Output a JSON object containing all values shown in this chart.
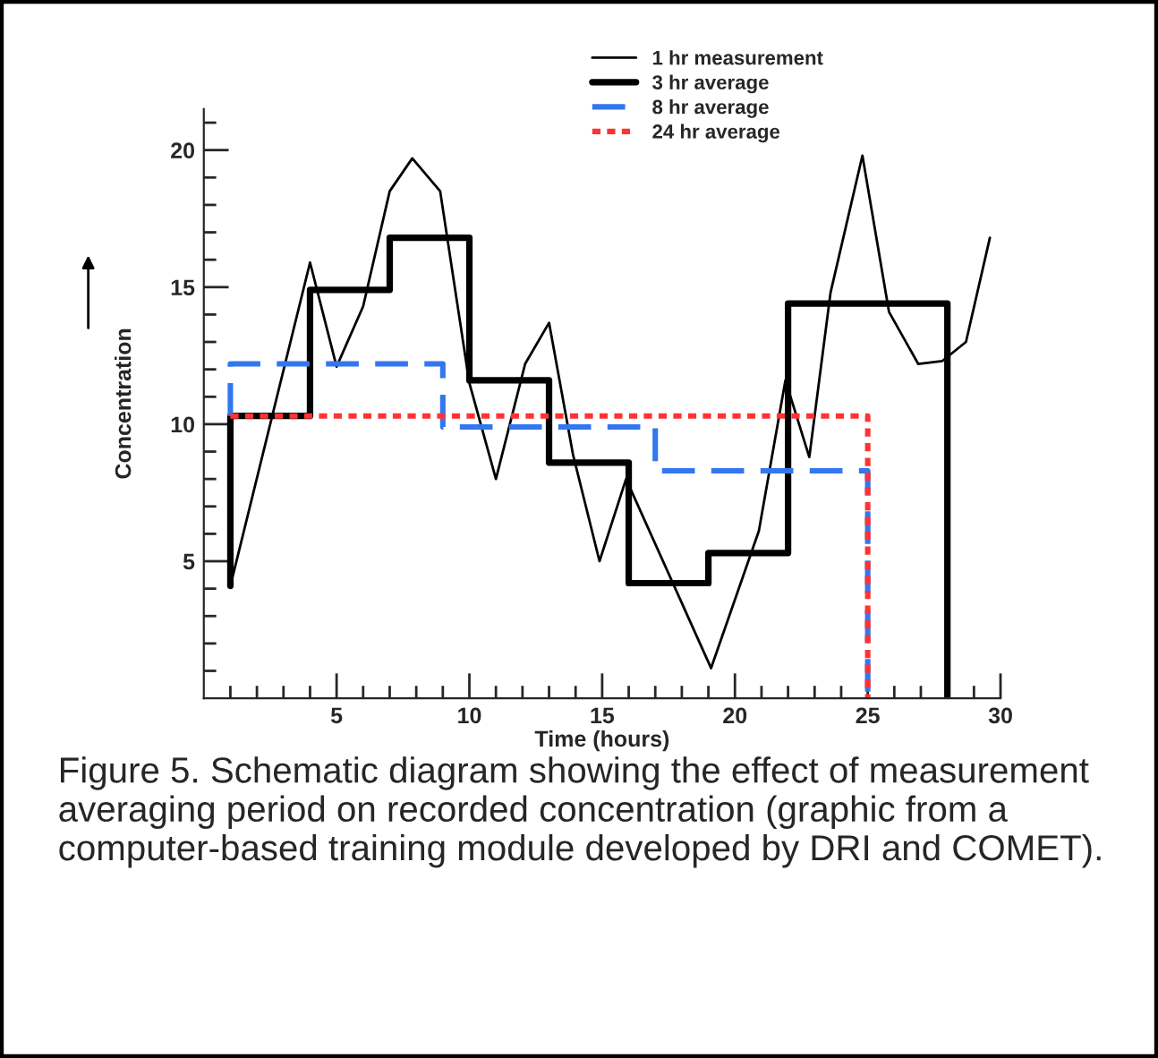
{
  "chart_data": {
    "type": "line",
    "xlabel": "Time (hours)",
    "ylabel": "Concentration",
    "xlim": [
      0,
      30
    ],
    "ylim": [
      0,
      21.5
    ],
    "xticks": [
      {
        "value": 1,
        "label": null
      },
      {
        "value": 2,
        "label": null
      },
      {
        "value": 3,
        "label": null
      },
      {
        "value": 4,
        "label": null
      },
      5,
      {
        "value": 6,
        "label": null
      },
      {
        "value": 7,
        "label": null
      },
      {
        "value": 8,
        "label": null
      },
      {
        "value": 9,
        "label": null
      },
      10,
      {
        "value": 11,
        "label": null
      },
      {
        "value": 12,
        "label": null
      },
      {
        "value": 13,
        "label": null
      },
      {
        "value": 14,
        "label": null
      },
      15,
      {
        "value": 16,
        "label": null
      },
      {
        "value": 17,
        "label": null
      },
      {
        "value": 18,
        "label": null
      },
      {
        "value": 19,
        "label": null
      },
      20,
      {
        "value": 21,
        "label": null
      },
      {
        "value": 22,
        "label": null
      },
      {
        "value": 23,
        "label": null
      },
      {
        "value": 24,
        "label": null
      },
      25,
      {
        "value": 26,
        "label": null
      },
      {
        "value": 27,
        "label": null
      },
      {
        "value": 28,
        "label": null
      },
      {
        "value": 29,
        "label": null
      },
      30
    ],
    "yticks": [
      {
        "value": 1,
        "label": null
      },
      {
        "value": 2,
        "label": null
      },
      {
        "value": 3,
        "label": null
      },
      {
        "value": 4,
        "label": null
      },
      5,
      {
        "value": 6,
        "label": null
      },
      {
        "value": 7,
        "label": null
      },
      {
        "value": 8,
        "label": null
      },
      {
        "value": 9,
        "label": null
      },
      10,
      {
        "value": 11,
        "label": null
      },
      {
        "value": 12,
        "label": null
      },
      {
        "value": 13,
        "label": null
      },
      {
        "value": 14,
        "label": null
      },
      15,
      {
        "value": 16,
        "label": null
      },
      {
        "value": 17,
        "label": null
      },
      {
        "value": 18,
        "label": null
      },
      {
        "value": 19,
        "label": null
      },
      20,
      {
        "value": 21,
        "label": null
      }
    ],
    "grid": false,
    "legend": "top right",
    "series": [
      {
        "name": "1 hr measurement",
        "color": "#000000",
        "line_style": "solid",
        "x": [
          1,
          4,
          5,
          6,
          7,
          7.85,
          8.9,
          10,
          11,
          12.1,
          13,
          13.9,
          14.9,
          15.9,
          19.1,
          20.9,
          21.9,
          22.8,
          23.6,
          24.8,
          25.8,
          26.9,
          27.8,
          28.7,
          29.6
        ],
        "values": [
          4.1,
          15.9,
          12.1,
          14.3,
          18.5,
          19.7,
          18.5,
          11.5,
          8.0,
          12.2,
          13.7,
          8.9,
          5.0,
          8.0,
          1.1,
          6.1,
          11.6,
          8.8,
          14.8,
          19.8,
          14.1,
          12.2,
          12.3,
          13.0,
          16.8
        ]
      },
      {
        "name": "3 hr average",
        "color": "#000000",
        "type": "step",
        "line_style": "solid",
        "x": [
          1,
          1,
          4,
          7,
          10,
          13,
          16,
          19,
          22,
          25,
          28
        ],
        "values": [
          4.1,
          10.3,
          14.9,
          16.8,
          11.6,
          8.6,
          4.2,
          5.3,
          14.4,
          14.4,
          0
        ]
      },
      {
        "name": "8 hr average",
        "color": "#3377ee",
        "type": "step",
        "line_style": "dashed",
        "x": [
          1,
          1,
          9,
          17,
          25
        ],
        "values": [
          10.3,
          12.2,
          9.9,
          8.3,
          0
        ]
      },
      {
        "name": "24 hr average",
        "color": "#ff3333",
        "type": "step",
        "line_style": "dotted",
        "x": [
          1,
          25
        ],
        "values": [
          10.3,
          0
        ]
      }
    ],
    "annotations": [
      "Figure 5. Schematic diagram showing the effect of measurement averaging period on recorded concentration (graphic from a computer-based training module developed by DRI and COMET)."
    ]
  }
}
